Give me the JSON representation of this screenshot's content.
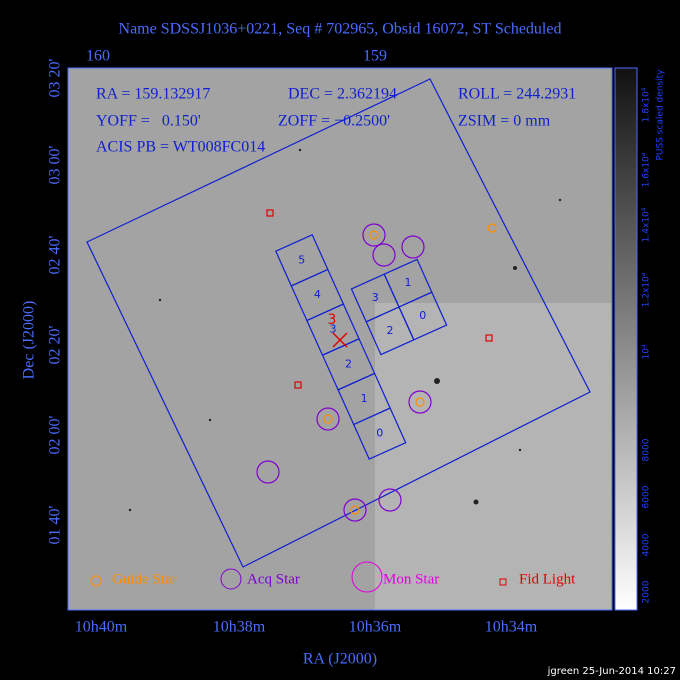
{
  "title": "Name SDSSJ1036+0221, Seq # 702965, Obsid 16072, ST Scheduled",
  "info": {
    "ra": "RA = 159.132917",
    "dec": "DEC = 2.362194",
    "roll": "ROLL = 244.2931",
    "yoff": "YOFF =   0.150'",
    "zoff": "ZOFF = −0.2500'",
    "zsim": "ZSIM = 0 mm",
    "acis": "ACIS PB = WT008FC014"
  },
  "top_axis": [
    "160",
    "159"
  ],
  "x_axis": {
    "title": "RA (J2000)",
    "labels": [
      "10h40m",
      "10h38m",
      "10h36m",
      "10h34m"
    ]
  },
  "y_axis": {
    "title": "Dec (J2000)",
    "labels": [
      "03 20'",
      "03 00'",
      "02 40'",
      "02 20'",
      "02 00'",
      "01 40'"
    ]
  },
  "colorbar": {
    "title": "PUSS scaled density",
    "labels": [
      "2000",
      "4000",
      "6000",
      "8000",
      "10⁴",
      "1.2x10⁴",
      "1.4x10⁴",
      "1.6x10⁴",
      "1.8x10⁴"
    ]
  },
  "ccd_labels": {
    "s": [
      "5",
      "4",
      "3",
      "2",
      "1",
      "0"
    ],
    "i": [
      "3",
      "1",
      "2",
      "0"
    ]
  },
  "marker_label": "3",
  "legend": [
    "Guide Star",
    "Acq Star",
    "Mon Star",
    "Fid Light"
  ],
  "footer": "jgreen 25-Jun-2014 10:27"
}
